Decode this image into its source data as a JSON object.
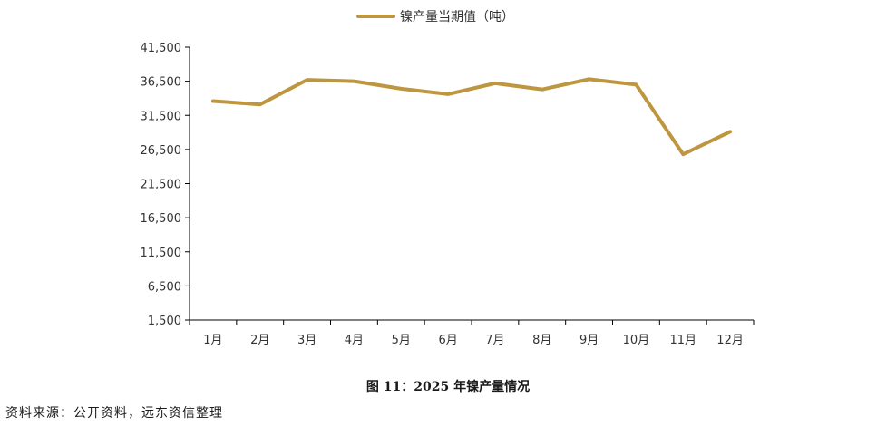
{
  "chart_data": {
    "type": "line",
    "title": "",
    "xlabel": "",
    "ylabel": "",
    "categories": [
      "1月",
      "2月",
      "3月",
      "4月",
      "5月",
      "6月",
      "7月",
      "8月",
      "9月",
      "10月",
      "11月",
      "12月"
    ],
    "series": [
      {
        "name": "镍产量当期值（吨）",
        "color": "#BF9640",
        "values": [
          33600,
          33100,
          36700,
          36500,
          35400,
          34600,
          36200,
          35300,
          36800,
          36000,
          25800,
          29100
        ]
      }
    ],
    "yticks": [
      "41,500",
      "36,500",
      "31,500",
      "26,500",
      "21,500",
      "16,500",
      "11,500",
      "6,500",
      "1,500"
    ],
    "ylim": [
      1500,
      41500
    ],
    "grid": false,
    "legend_position": "top-center"
  },
  "caption": "图 11：2025 年镍产量情况",
  "source": "资料来源：公开资料，远东资信整理"
}
